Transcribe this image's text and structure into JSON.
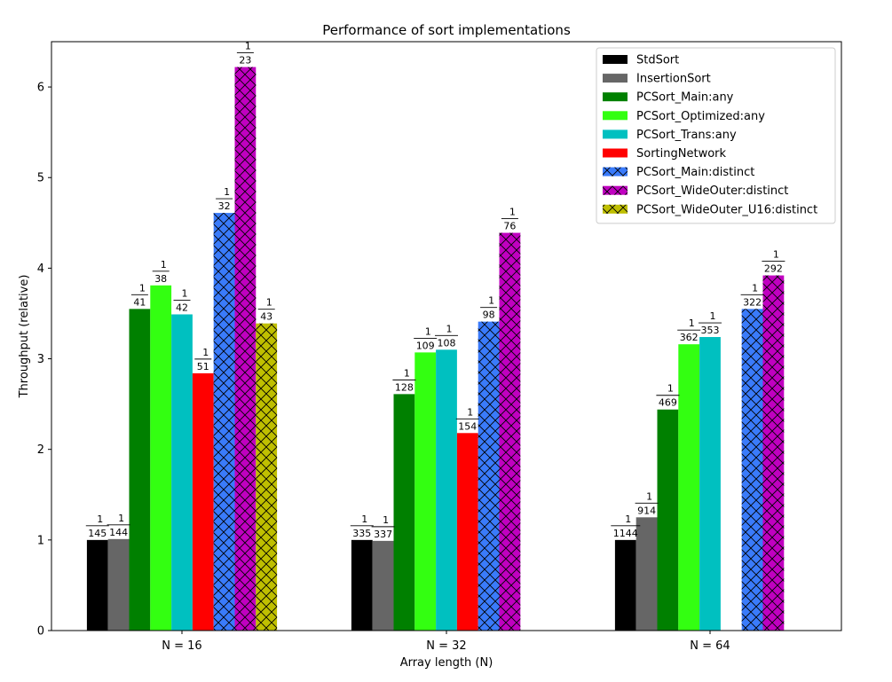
{
  "chart_data": {
    "type": "bar",
    "title": "Performance of sort implementations",
    "xlabel": "Array length (N)",
    "ylabel": "Throughput (relative)",
    "categories": [
      "N = 16",
      "N = 32",
      "N = 64"
    ],
    "ylim": [
      0,
      6.5
    ],
    "yticks": [
      0,
      1,
      2,
      3,
      4,
      5,
      6
    ],
    "grid": false,
    "legend_position": "top-right",
    "series": [
      {
        "name": "StdSort",
        "color": "#000000",
        "hatch": false,
        "values": [
          1.0,
          1.0,
          1.0
        ],
        "labels": [
          "145",
          "335",
          "1144"
        ]
      },
      {
        "name": "InsertionSort",
        "color": "#666666",
        "hatch": false,
        "values": [
          1.01,
          0.99,
          1.25
        ],
        "labels": [
          "144",
          "337",
          "914"
        ]
      },
      {
        "name": "PCSort_Main:any",
        "color": "#008000",
        "hatch": false,
        "values": [
          3.55,
          2.61,
          2.44
        ],
        "labels": [
          "41",
          "128",
          "469"
        ]
      },
      {
        "name": "PCSort_Optimized:any",
        "color": "#33ff11",
        "hatch": false,
        "values": [
          3.81,
          3.07,
          3.16
        ],
        "labels": [
          "38",
          "109",
          "362"
        ]
      },
      {
        "name": "PCSort_Trans:any",
        "color": "#00c0c0",
        "hatch": false,
        "values": [
          3.49,
          3.1,
          3.24
        ],
        "labels": [
          "42",
          "108",
          "353"
        ]
      },
      {
        "name": "SortingNetwork",
        "color": "#ff0000",
        "hatch": false,
        "values": [
          2.84,
          2.18,
          null
        ],
        "labels": [
          "51",
          "154",
          null
        ]
      },
      {
        "name": "PCSort_Main:distinct",
        "color": "#3a7bfa",
        "hatch": true,
        "values": [
          4.61,
          3.41,
          3.55
        ],
        "labels": [
          "32",
          "98",
          "322"
        ]
      },
      {
        "name": "PCSort_WideOuter:distinct",
        "color": "#c000c0",
        "hatch": true,
        "values": [
          6.22,
          4.39,
          3.92
        ],
        "labels": [
          "23",
          "76",
          "292"
        ]
      },
      {
        "name": "PCSort_WideOuter_U16:distinct",
        "color": "#bfbf00",
        "hatch": true,
        "values": [
          3.39,
          null,
          null
        ],
        "labels": [
          "43",
          null,
          null
        ]
      }
    ],
    "fraction_numerator": "1"
  }
}
